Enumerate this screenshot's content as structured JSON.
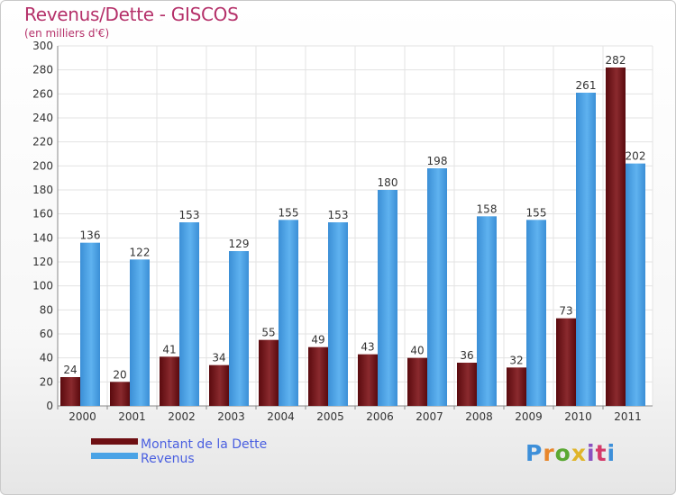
{
  "title": "Revenus/Dette - GISCOS",
  "subtitle": "(en milliers d'€)",
  "logo_text": "Proxiti",
  "colors": {
    "dette": "#6e0f13",
    "revenus": "#4aa3e6",
    "title": "#b5316a",
    "legend_text": "#4a5fe0"
  },
  "legend": [
    {
      "label": "Montant de la Dette",
      "color": "#6e0f13"
    },
    {
      "label": "Revenus",
      "color": "#4aa3e6"
    }
  ],
  "chart_data": {
    "type": "bar",
    "title": "Revenus/Dette - GISCOS",
    "subtitle": "(en milliers d'€)",
    "categories": [
      "2000",
      "2001",
      "2002",
      "2003",
      "2004",
      "2005",
      "2006",
      "2007",
      "2008",
      "2009",
      "2010",
      "2011"
    ],
    "series": [
      {
        "name": "Montant de la Dette",
        "color": "#6e0f13",
        "values": [
          24,
          20,
          41,
          34,
          55,
          49,
          43,
          40,
          36,
          32,
          73,
          282
        ]
      },
      {
        "name": "Revenus",
        "color": "#4aa3e6",
        "values": [
          136,
          122,
          153,
          129,
          155,
          153,
          180,
          198,
          158,
          155,
          261,
          202
        ]
      }
    ],
    "ylim": [
      0,
      300
    ],
    "yticks": [
      0,
      20,
      40,
      60,
      80,
      100,
      120,
      140,
      160,
      180,
      200,
      220,
      240,
      260,
      280,
      300
    ],
    "grid": true,
    "legend_position": "bottom-left"
  }
}
